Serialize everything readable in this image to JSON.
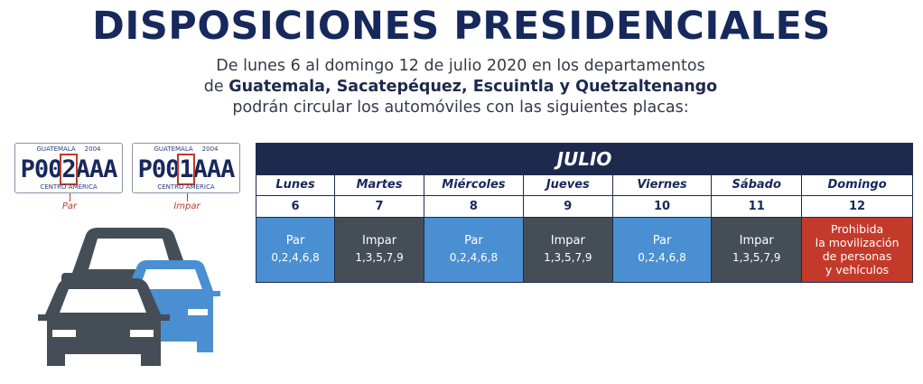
{
  "title": "DISPOSICIONES PRESIDENCIALES",
  "subtitle": {
    "line1": "De lunes 6 al domingo 12 de julio 2020 en los departamentos",
    "line2_prefix": "de ",
    "line2_bold": "Guatemala, Sacatepéquez, Escuintla y Quetzaltenango",
    "line3": "podrán circular los automóviles con las siguientes placas:"
  },
  "plates": [
    {
      "top_left": "GUATEMALA",
      "year": "2004",
      "prefix": "P00",
      "digit": "2",
      "suffix": "AAA",
      "bottom": "CENTRO AMÉRICA",
      "label": "Par"
    },
    {
      "top_left": "GUATEMALA",
      "year": "2004",
      "prefix": "P00",
      "digit": "1",
      "suffix": "AAA",
      "bottom": "CENTRO AMÉRICA",
      "label": "Impar"
    }
  ],
  "calendar": {
    "month": "JULIO",
    "days": [
      {
        "name": "Lunes",
        "num": "6",
        "type": "par",
        "line1": "Par",
        "line2": "0,2,4,6,8"
      },
      {
        "name": "Martes",
        "num": "7",
        "type": "impar",
        "line1": "Impar",
        "line2": "1,3,5,7,9"
      },
      {
        "name": "Miércoles",
        "num": "8",
        "type": "par",
        "line1": "Par",
        "line2": "0,2,4,6,8"
      },
      {
        "name": "Jueves",
        "num": "9",
        "type": "impar",
        "line1": "Impar",
        "line2": "1,3,5,7,9"
      },
      {
        "name": "Viernes",
        "num": "10",
        "type": "par",
        "line1": "Par",
        "line2": "0,2,4,6,8"
      },
      {
        "name": "Sábado",
        "num": "11",
        "type": "impar",
        "line1": "Impar",
        "line2": "1,3,5,7,9"
      },
      {
        "name": "Domingo",
        "num": "12",
        "type": "proh",
        "line1": "Prohibida",
        "line2": "la movilización",
        "line3": "de personas",
        "line4": "y vehículos"
      }
    ]
  },
  "colors": {
    "navy": "#1d2a4d",
    "par": "#4a8fd1",
    "impar": "#454d57",
    "prohibida": "#c33a2b"
  },
  "illustration": "cars-icon"
}
